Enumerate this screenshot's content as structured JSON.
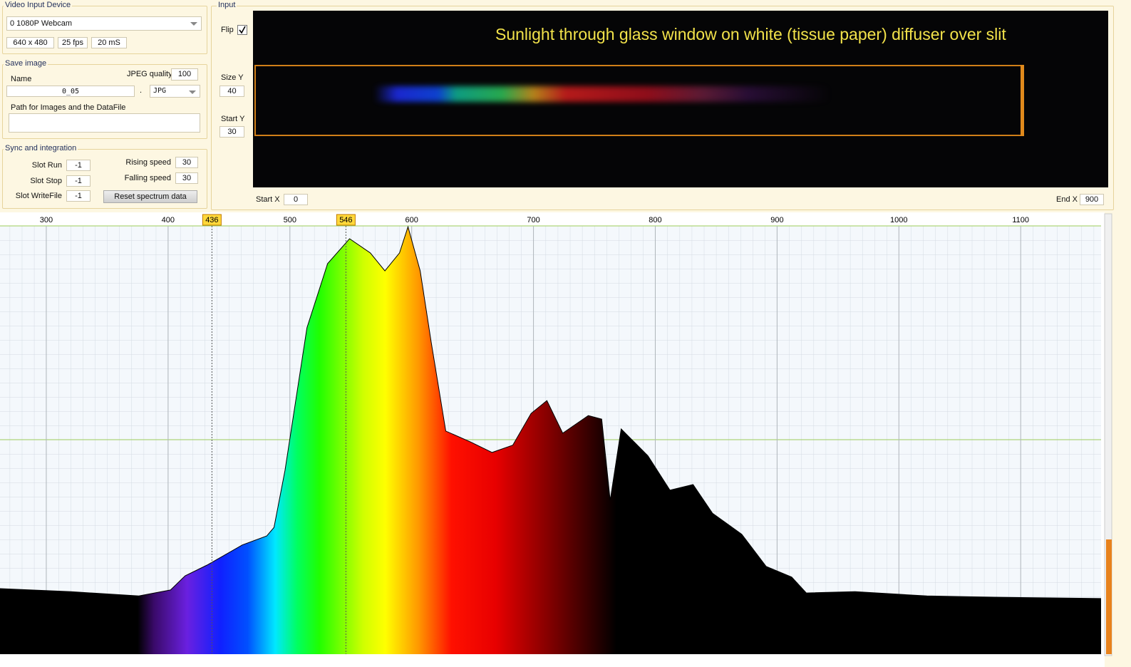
{
  "video_input": {
    "title": "Video Input Device",
    "device": "0 1080P Webcam",
    "resolution": "640 x 480",
    "fps": "25 fps",
    "exposure": "20 mS"
  },
  "save_image": {
    "title": "Save image",
    "name_label": "Name",
    "jpeg_quality_label": "JPEG quality",
    "jpeg_quality": 100,
    "name": "0_05",
    "separator": ".",
    "format": "JPG",
    "path_label": "Path for Images and the DataFile"
  },
  "sync": {
    "title": "Sync and integration",
    "slot_run_label": "Slot Run",
    "slot_run": -1,
    "slot_stop_label": "Slot Stop",
    "slot_stop": -1,
    "slot_writefile_label": "Slot WriteFile",
    "slot_writefile": -1,
    "rising_label": "Rising speed",
    "rising": 30,
    "falling_label": "Falling speed",
    "falling": 30,
    "reset_button": "Reset spectrum data"
  },
  "input": {
    "title": "Input",
    "flip_label": "Flip",
    "flip": true,
    "size_y_label": "Size Y",
    "size_y": 40,
    "start_y_label": "Start Y",
    "start_y": 30,
    "start_x_label": "Start X",
    "start_x": 0,
    "end_x_label": "End X",
    "end_x": 900,
    "annotation": "Sunlight through glass window on white (tissue paper) diffuser over slit"
  },
  "chart_data": {
    "type": "area",
    "x": [
      262,
      320,
      376,
      402,
      414,
      432,
      461,
      481,
      487,
      496,
      514,
      531,
      549,
      566,
      578,
      590,
      597,
      607,
      616,
      628,
      648,
      666,
      683,
      698,
      711,
      724,
      745,
      756,
      763,
      772,
      794,
      812,
      831,
      847,
      871,
      891,
      912,
      924,
      964,
      1023,
      1081,
      1166
    ],
    "values": [
      15.3,
      14.6,
      13.6,
      15,
      18.3,
      20.8,
      25.5,
      27.6,
      29.6,
      42.9,
      76.2,
      91.2,
      97,
      93.7,
      89.5,
      93.7,
      99.8,
      89.5,
      72.9,
      52.1,
      49.6,
      47.1,
      48.8,
      56.2,
      59.2,
      51.6,
      55.7,
      54.9,
      35.9,
      52.6,
      46.3,
      38.3,
      39.6,
      32.9,
      28,
      20.5,
      18,
      14.3,
      14.6,
      13.6,
      13.3,
      13
    ],
    "xlim": [
      262,
      1166
    ],
    "ylim": [
      0,
      100
    ],
    "xticks": [
      300,
      400,
      500,
      600,
      700,
      800,
      900,
      1000,
      1100
    ],
    "markers": [
      436,
      546
    ],
    "grid": true
  }
}
